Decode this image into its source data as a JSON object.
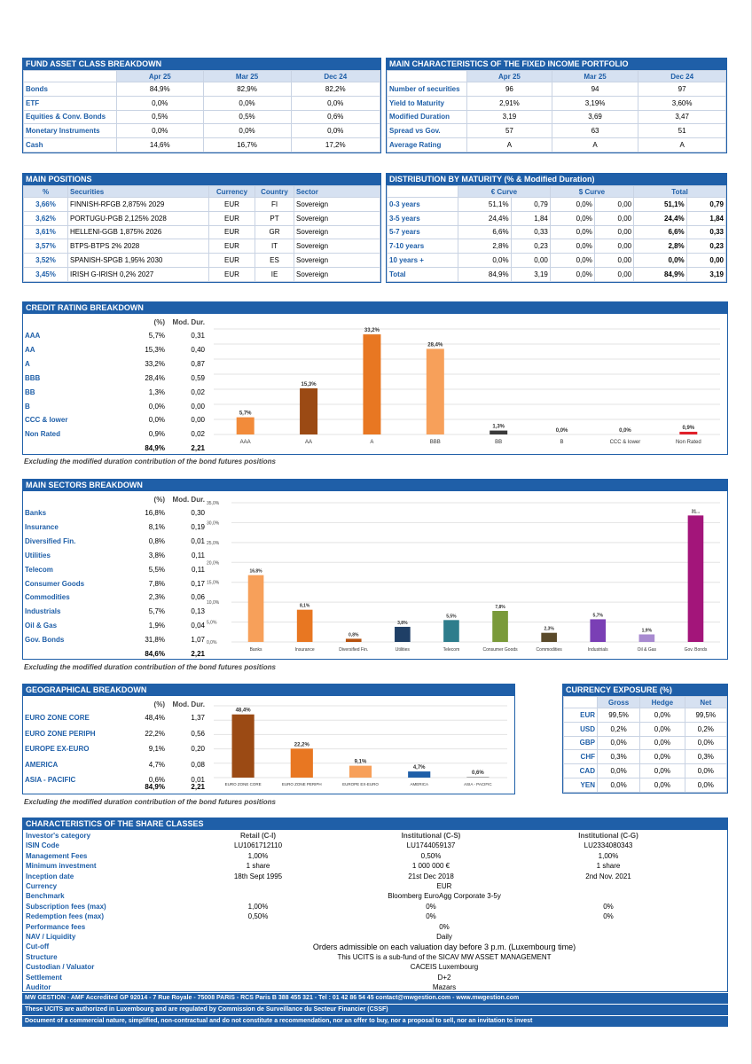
{
  "fund_asset": {
    "title": "FUND ASSET CLASS BREAKDOWN",
    "cols": [
      "Apr 25",
      "Mar 25",
      "Dec 24"
    ],
    "rows": [
      {
        "label": "Bonds",
        "vals": [
          "84,9%",
          "82,9%",
          "82,2%"
        ]
      },
      {
        "label": "ETF",
        "vals": [
          "0,0%",
          "0,0%",
          "0,0%"
        ]
      },
      {
        "label": "Equities & Conv. Bonds",
        "vals": [
          "0,5%",
          "0,5%",
          "0,6%"
        ]
      },
      {
        "label": "Monetary Instruments",
        "vals": [
          "0,0%",
          "0,0%",
          "0,0%"
        ]
      },
      {
        "label": "Cash",
        "vals": [
          "14,6%",
          "16,7%",
          "17,2%"
        ]
      }
    ]
  },
  "fixed_income": {
    "title": "MAIN CHARACTERISTICS OF THE FIXED INCOME PORTFOLIO",
    "cols": [
      "Apr 25",
      "Mar 25",
      "Dec 24"
    ],
    "rows": [
      {
        "label": "Number of securities",
        "vals": [
          "96",
          "94",
          "97"
        ]
      },
      {
        "label": "Yield to Maturity",
        "vals": [
          "2,91%",
          "3,19%",
          "3,60%"
        ]
      },
      {
        "label": "Modified Duration",
        "vals": [
          "3,19",
          "3,69",
          "3,47"
        ]
      },
      {
        "label": "Spread vs Gov.",
        "vals": [
          "57",
          "63",
          "51"
        ]
      },
      {
        "label": "Average Rating",
        "vals": [
          "A",
          "A",
          "A"
        ]
      }
    ]
  },
  "positions": {
    "title": "MAIN POSITIONS",
    "cols": [
      "%",
      "Securities",
      "Currency",
      "Country",
      "Sector"
    ],
    "rows": [
      {
        "pct": "3,66%",
        "sec": "FINNISH-RFGB 2,875% 2029",
        "cur": "EUR",
        "cty": "FI",
        "sector": "Sovereign"
      },
      {
        "pct": "3,62%",
        "sec": "PORTUGU-PGB 2,125% 2028",
        "cur": "EUR",
        "cty": "PT",
        "sector": "Sovereign"
      },
      {
        "pct": "3,61%",
        "sec": "HELLENI-GGB 1,875% 2026",
        "cur": "EUR",
        "cty": "GR",
        "sector": "Sovereign"
      },
      {
        "pct": "3,57%",
        "sec": "BTPS-BTPS 2% 2028",
        "cur": "EUR",
        "cty": "IT",
        "sector": "Sovereign"
      },
      {
        "pct": "3,52%",
        "sec": "SPANISH-SPGB 1,95% 2030",
        "cur": "EUR",
        "cty": "ES",
        "sector": "Sovereign"
      },
      {
        "pct": "3,45%",
        "sec": "IRISH G-IRISH 0,2% 2027",
        "cur": "EUR",
        "cty": "IE",
        "sector": "Sovereign"
      }
    ]
  },
  "maturity": {
    "title": "DISTRIBUTION BY MATURITY (% & Modified Duration)",
    "groups": [
      "€ Curve",
      "$ Curve",
      "Total"
    ],
    "rows": [
      {
        "label": "0-3 years",
        "vals": [
          "51,1%",
          "0,79",
          "0,0%",
          "0,00",
          "51,1%",
          "0,79"
        ]
      },
      {
        "label": "3-5 years",
        "vals": [
          "24,4%",
          "1,84",
          "0,0%",
          "0,00",
          "24,4%",
          "1,84"
        ]
      },
      {
        "label": "5-7 years",
        "vals": [
          "6,6%",
          "0,33",
          "0,0%",
          "0,00",
          "6,6%",
          "0,33"
        ]
      },
      {
        "label": "7-10 years",
        "vals": [
          "2,8%",
          "0,23",
          "0,0%",
          "0,00",
          "2,8%",
          "0,23"
        ]
      },
      {
        "label": "10 years +",
        "vals": [
          "0,0%",
          "0,00",
          "0,0%",
          "0,00",
          "0,0%",
          "0,00"
        ]
      },
      {
        "label": "Total",
        "vals": [
          "84,9%",
          "3,19",
          "0,0%",
          "0,00",
          "84,9%",
          "3,19"
        ]
      }
    ]
  },
  "credit": {
    "title": "CREDIT RATING BREAKDOWN",
    "col_pct": "(%)",
    "col_md": "Mod. Dur.",
    "rows": [
      {
        "label": "AAA",
        "pct": "5,7%",
        "md": "0,31"
      },
      {
        "label": "AA",
        "pct": "15,3%",
        "md": "0,40"
      },
      {
        "label": "A",
        "pct": "33,2%",
        "md": "0,87"
      },
      {
        "label": "BBB",
        "pct": "28,4%",
        "md": "0,59"
      },
      {
        "label": "BB",
        "pct": "1,3%",
        "md": "0,02"
      },
      {
        "label": "B",
        "pct": "0,0%",
        "md": "0,00"
      },
      {
        "label": "CCC & lower",
        "pct": "0,0%",
        "md": "0,00"
      },
      {
        "label": "Non Rated",
        "pct": "0,9%",
        "md": "0,02"
      }
    ],
    "total_pct": "84,9%",
    "total_md": "2,21",
    "note": "Excluding the modified duration contribution of the bond futures positions"
  },
  "sectors": {
    "title": "MAIN SECTORS BREAKDOWN",
    "col_pct": "(%)",
    "col_md": "Mod. Dur.",
    "rows": [
      {
        "label": "Banks",
        "pct": "16,8%",
        "md": "0,30"
      },
      {
        "label": "Insurance",
        "pct": "8,1%",
        "md": "0,19"
      },
      {
        "label": "Diversified Fin.",
        "pct": "0,8%",
        "md": "0,01"
      },
      {
        "label": "Utilities",
        "pct": "3,8%",
        "md": "0,11"
      },
      {
        "label": "Telecom",
        "pct": "5,5%",
        "md": "0,11"
      },
      {
        "label": "Consumer Goods",
        "pct": "7,8%",
        "md": "0,17"
      },
      {
        "label": "Commodities",
        "pct": "2,3%",
        "md": "0,06"
      },
      {
        "label": "Industrials",
        "pct": "5,7%",
        "md": "0,13"
      },
      {
        "label": "Oil & Gas",
        "pct": "1,9%",
        "md": "0,04"
      },
      {
        "label": "Gov. Bonds",
        "pct": "31,8%",
        "md": "1,07"
      }
    ],
    "total_pct": "84,6%",
    "total_md": "2,21",
    "note": "Excluding the modified duration contribution of the bond futures positions"
  },
  "geo": {
    "title": "GEOGRAPHICAL BREAKDOWN",
    "col_pct": "(%)",
    "col_md": "Mod. Dur.",
    "rows": [
      {
        "label": "EURO ZONE CORE",
        "pct": "48,4%",
        "md": "1,37"
      },
      {
        "label": "EURO ZONE PERIPH",
        "pct": "22,2%",
        "md": "0,56"
      },
      {
        "label": "EUROPE EX-EURO",
        "pct": "9,1%",
        "md": "0,20"
      },
      {
        "label": "AMERICA",
        "pct": "4,7%",
        "md": "0,08"
      },
      {
        "label": "ASIA - PACIFIC",
        "pct": "0,6%",
        "md": "0,01"
      }
    ],
    "total_pct": "84,9%",
    "total_md": "2,21",
    "note": "Excluding the modified duration contribution of the bond futures positions"
  },
  "currency": {
    "title": "CURRENCY EXPOSURE (%)",
    "cols": [
      "Gross",
      "Hedge",
      "Net"
    ],
    "rows": [
      {
        "label": "EUR",
        "vals": [
          "99,5%",
          "0,0%",
          "99,5%"
        ]
      },
      {
        "label": "USD",
        "vals": [
          "0,2%",
          "0,0%",
          "0,2%"
        ]
      },
      {
        "label": "GBP",
        "vals": [
          "0,0%",
          "0,0%",
          "0,0%"
        ]
      },
      {
        "label": "CHF",
        "vals": [
          "0,3%",
          "0,0%",
          "0,3%"
        ]
      },
      {
        "label": "CAD",
        "vals": [
          "0,0%",
          "0,0%",
          "0,0%"
        ]
      },
      {
        "label": "YEN",
        "vals": [
          "0,0%",
          "0,0%",
          "0,0%"
        ]
      }
    ]
  },
  "chart_data": [
    {
      "type": "bar",
      "categories": [
        "AAA",
        "AA",
        "A",
        "BBB",
        "BB",
        "B",
        "CCC & lower",
        "Non Rated"
      ],
      "values": [
        5.7,
        15.3,
        33.2,
        28.4,
        1.3,
        0.0,
        0.0,
        0.9
      ],
      "labels": [
        "5,7%",
        "15,3%",
        "33,2%",
        "28,4%",
        "1,3%",
        "0,0%",
        "0,0%",
        "0,9%"
      ],
      "colors": [
        "#f28b3a",
        "#9b4a14",
        "#e87722",
        "#f7a05a",
        "#3a3a3a",
        "#999999",
        "#999999",
        "#e0202a"
      ],
      "ylim": [
        0,
        35
      ],
      "grid": true
    },
    {
      "type": "bar",
      "categories": [
        "Banks",
        "Insurance",
        "Diversified Fin.",
        "Utilities",
        "Telecom",
        "Consumer Goods",
        "Commodities",
        "Industrials",
        "Oil & Gas",
        "Gov. Bonds"
      ],
      "values": [
        16.8,
        8.1,
        0.8,
        3.8,
        5.5,
        7.8,
        2.3,
        5.7,
        1.9,
        31.8
      ],
      "labels": [
        "16,8%",
        "8,1%",
        "0,8%",
        "3,8%",
        "5,5%",
        "7,8%",
        "2,3%",
        "5,7%",
        "1,9%",
        "31..."
      ],
      "colors": [
        "#f7a05a",
        "#e87722",
        "#b5520f",
        "#1f3f66",
        "#2e7d8c",
        "#7a9a3a",
        "#5a4a2a",
        "#7a3fb5",
        "#a88ad0",
        "#a3157a"
      ],
      "yticks": [
        "0,0%",
        "5,0%",
        "10,0%",
        "15,0%",
        "20,0%",
        "25,0%",
        "30,0%",
        "35,0%"
      ],
      "ylim": [
        0,
        35
      ],
      "grid": true
    },
    {
      "type": "bar",
      "categories": [
        "EURO ZONE CORE",
        "EURO ZONE PERIPH",
        "EUROPE EX-EURO",
        "AMERICA",
        "ASIA - PACIFIC"
      ],
      "values": [
        48.4,
        22.2,
        9.1,
        4.7,
        0.6
      ],
      "labels": [
        "48,4%",
        "22,2%",
        "9,1%",
        "4,7%",
        "0,6%"
      ],
      "colors": [
        "#9b4a14",
        "#e87722",
        "#f7a05a",
        "#1f5fa8",
        "#aaaaaa"
      ],
      "ylim": [
        0,
        55
      ],
      "grid": true
    }
  ],
  "share_classes": {
    "title": "CHARACTERISTICS OF THE SHARE CLASSES",
    "labels": [
      "Investor's category",
      "ISIN Code",
      "Management Fees",
      "Minimum investment",
      "Inception date",
      "Currency",
      "Benchmark",
      "Subscription fees (max)",
      "Redemption fees (max)",
      "Performance fees",
      "NAV / Liquidity",
      "Cut-off",
      "Structure",
      "Custodian / Valuator",
      "Settlement",
      "Auditor"
    ],
    "classes": [
      {
        "name": "Retail (C-I)",
        "isin": "LU1061712110",
        "fees": "1,00%",
        "min": "1 share",
        "inception": "18th Sept 1995",
        "sub": "1,00%",
        "red": "0,50%"
      },
      {
        "name": "Institutional (C-S)",
        "isin": "LU1744059137",
        "fees": "0,50%",
        "min": "1 000 000 €",
        "inception": "21st Dec 2018",
        "sub": "0%",
        "red": "0%"
      },
      {
        "name": "Institutional (C-G)",
        "isin": "LU2334080343",
        "fees": "1,00%",
        "min": "1 share",
        "inception": "2nd Nov. 2021",
        "sub": "0%",
        "red": "0%"
      }
    ],
    "currency": "EUR",
    "benchmark": "Bloomberg EuroAgg Corporate 3-5y",
    "performance": "0%",
    "nav": "Daily",
    "cutoff": "Orders admissible on each valuation day before 3 p.m. (Luxembourg time)",
    "structure": "This UCITS is a sub-fund of the SICAV MW ASSET MANAGEMENT",
    "custodian": "CACEIS Luxembourg",
    "settlement": "D+2",
    "auditor": "Mazars"
  },
  "footer": [
    "MW GESTION - AMF Accredited GP 92014 - 7 Rue Royale - 75008 PARIS - RCS Paris B 388 455 321 - Tel : 01 42 86 54 45 contact@mwgestion.com - www.mwgestion.com",
    "These UCITS are authorized in Luxembourg and are regulated by Commission de Surveillance du Secteur Financier (CSSF)",
    "Document of a commercial nature, simplified, non-contractual and do not constitute a recommendation, nor an offer to buy, nor a proposal to sell, nor an invitation to invest"
  ]
}
